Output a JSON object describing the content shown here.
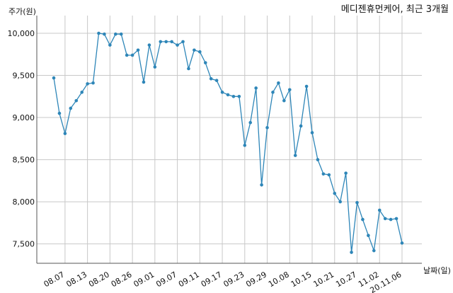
{
  "chart_data": {
    "type": "line",
    "title": "메디젠휴먼케어, 최근 3개월",
    "ylabel": "주가(원)",
    "xlabel": "날짜(일)",
    "ylim": [
      7270,
      10210
    ],
    "yticks": [
      7500,
      8000,
      8500,
      9000,
      9500,
      10000
    ],
    "ytick_labels": [
      "7,500",
      "8,000",
      "8,500",
      "9,000",
      "9,500",
      "10,000"
    ],
    "xtick_labels": [
      "08.07",
      "08.13",
      "08.20",
      "08.26",
      "09.01",
      "09.07",
      "09.11",
      "09.17",
      "09.23",
      "09.29",
      "10.08",
      "10.15",
      "10.21",
      "10.27",
      "11.02",
      "20.11.06"
    ],
    "grid": true,
    "line_color": "#2e86b8",
    "series": [
      {
        "values": [
          9470,
          9050,
          8810,
          9110,
          9200,
          9300,
          9400,
          9410,
          10000,
          9990,
          9860,
          9990,
          9990,
          9740,
          9740,
          9800,
          9420,
          9860,
          9600,
          9900,
          9900,
          9900,
          9860,
          9900,
          9580,
          9800,
          9780,
          9650,
          9460,
          9440,
          9300,
          9270,
          9250,
          9250,
          8670,
          8940,
          9350,
          8200,
          8880,
          9300,
          9410,
          9200,
          9330,
          8550,
          8900,
          9370,
          8820,
          8500,
          8330,
          8320,
          8100,
          8000,
          8340,
          7400,
          7990,
          7790,
          7600,
          7420,
          7900,
          7800,
          7790,
          7800,
          7510
        ]
      }
    ]
  }
}
